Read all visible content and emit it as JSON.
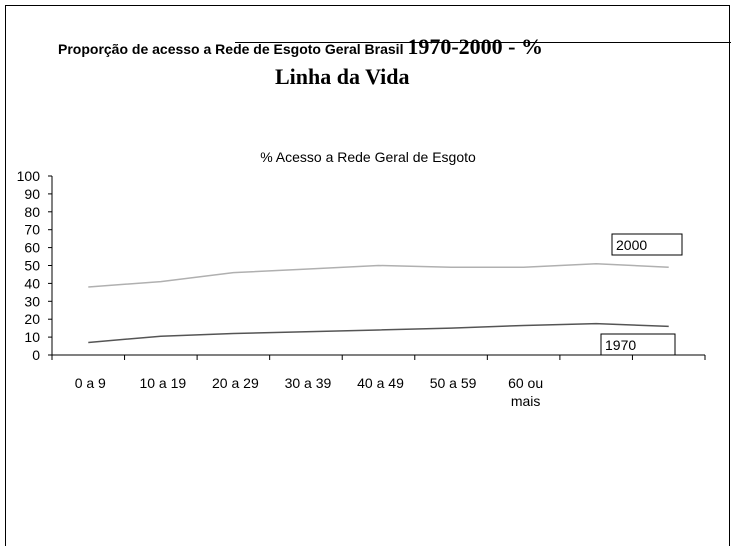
{
  "header": {
    "title_small": "Proporção de acesso a Rede de Esgoto Geral Brasil",
    "title_big": "1970-2000  - %",
    "subtitle": "Linha da Vida"
  },
  "chart_data": {
    "type": "line",
    "title": "% Acesso a Rede Geral de Esgoto",
    "xlabel": "",
    "ylabel": "",
    "ylim": [
      0,
      100
    ],
    "yticks": [
      0,
      10,
      20,
      30,
      40,
      50,
      60,
      70,
      80,
      90,
      100
    ],
    "categories": [
      "0 a 9",
      "10 a 19",
      "20 a 29",
      "30 a 39",
      "40 a 49",
      "50 a 59",
      "60 ou mais",
      "",
      ""
    ],
    "series": [
      {
        "name": "2000",
        "color": "#b0b0b0",
        "values": [
          38,
          41,
          46,
          48,
          50,
          49,
          49,
          51,
          49
        ]
      },
      {
        "name": "1970",
        "color": "#555555",
        "values": [
          7,
          10.5,
          12,
          13,
          14,
          15,
          16.5,
          17.5,
          16
        ]
      }
    ],
    "grid": false,
    "legend": "boxed labels at line ends (right)"
  }
}
